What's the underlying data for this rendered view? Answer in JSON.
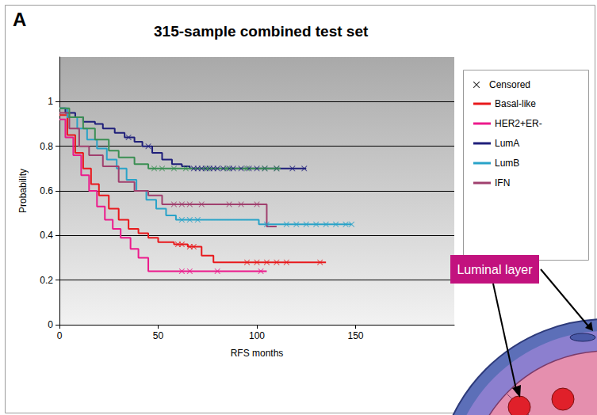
{
  "chart_data": {
    "type": "line",
    "panel_label": "A",
    "title": "315-sample combined test set",
    "x_label": "RFS months",
    "y_label": "Probability",
    "xlim": [
      0,
      200
    ],
    "xticks": [
      0,
      50,
      100,
      150
    ],
    "ylim": [
      0,
      1.2
    ],
    "yticks": [
      0,
      0.2,
      0.4,
      0.6,
      0.8,
      1
    ],
    "grid": true,
    "legend": "upper right",
    "censored_label": "Censored",
    "marker": "x",
    "line_style": "step",
    "series": [
      {
        "name": "Basal-like",
        "color": "#e8191c",
        "x": [
          0,
          4,
          8,
          12,
          16,
          20,
          25,
          30,
          35,
          40,
          45,
          50,
          58,
          65,
          72,
          78,
          135
        ],
        "values": [
          0.94,
          0.85,
          0.77,
          0.7,
          0.63,
          0.58,
          0.52,
          0.47,
          0.43,
          0.41,
          0.39,
          0.37,
          0.36,
          0.35,
          0.31,
          0.28,
          0.28
        ],
        "censored": [
          [
            60,
            0.36
          ],
          [
            62,
            0.36
          ],
          [
            66,
            0.35
          ],
          [
            68,
            0.35
          ],
          [
            95,
            0.28
          ],
          [
            100,
            0.28
          ],
          [
            105,
            0.28
          ],
          [
            110,
            0.28
          ],
          [
            115,
            0.28
          ],
          [
            132,
            0.28
          ]
        ]
      },
      {
        "name": "HER2+ER-",
        "color": "#ec1a8c",
        "x": [
          0,
          3,
          7,
          11,
          15,
          19,
          23,
          27,
          31,
          36,
          40,
          45,
          105
        ],
        "values": [
          0.92,
          0.84,
          0.76,
          0.67,
          0.6,
          0.53,
          0.47,
          0.43,
          0.39,
          0.34,
          0.3,
          0.24,
          0.24
        ],
        "censored": [
          [
            62,
            0.24
          ],
          [
            66,
            0.24
          ],
          [
            80,
            0.24
          ],
          [
            102,
            0.24
          ]
        ]
      },
      {
        "name": "LumA",
        "color": "#1f1f7a",
        "x": [
          0,
          3,
          8,
          12,
          18,
          22,
          28,
          33,
          38,
          42,
          47,
          52,
          57,
          62,
          66,
          125
        ],
        "values": [
          0.97,
          0.95,
          0.93,
          0.91,
          0.9,
          0.88,
          0.86,
          0.84,
          0.82,
          0.8,
          0.77,
          0.74,
          0.72,
          0.71,
          0.7,
          0.7
        ],
        "censored": [
          [
            35,
            0.84
          ],
          [
            45,
            0.8
          ],
          [
            68,
            0.7
          ],
          [
            70,
            0.7
          ],
          [
            72,
            0.7
          ],
          [
            74,
            0.7
          ],
          [
            76,
            0.7
          ],
          [
            78,
            0.7
          ],
          [
            80,
            0.7
          ],
          [
            83,
            0.7
          ],
          [
            86,
            0.7
          ],
          [
            88,
            0.7
          ],
          [
            92,
            0.7
          ],
          [
            96,
            0.7
          ],
          [
            100,
            0.7
          ],
          [
            104,
            0.7
          ],
          [
            110,
            0.7
          ],
          [
            118,
            0.7
          ],
          [
            124,
            0.7
          ]
        ]
      },
      {
        "name": "LumB",
        "color": "#29a3c8",
        "x": [
          0,
          4,
          9,
          14,
          19,
          24,
          29,
          34,
          39,
          44,
          49,
          54,
          59,
          101,
          148
        ],
        "values": [
          0.97,
          0.93,
          0.88,
          0.83,
          0.79,
          0.74,
          0.7,
          0.65,
          0.6,
          0.56,
          0.52,
          0.49,
          0.47,
          0.45,
          0.45
        ],
        "censored": [
          [
            62,
            0.47
          ],
          [
            66,
            0.47
          ],
          [
            70,
            0.47
          ],
          [
            105,
            0.45
          ],
          [
            115,
            0.45
          ],
          [
            120,
            0.45
          ],
          [
            125,
            0.45
          ],
          [
            130,
            0.45
          ],
          [
            135,
            0.45
          ],
          [
            140,
            0.45
          ],
          [
            145,
            0.45
          ],
          [
            148,
            0.45
          ]
        ]
      },
      {
        "name": "IFN",
        "color": "#a0406e",
        "x": [
          0,
          5,
          10,
          15,
          22,
          30,
          38,
          45,
          52,
          105,
          110
        ],
        "values": [
          0.95,
          0.88,
          0.8,
          0.76,
          0.71,
          0.64,
          0.6,
          0.58,
          0.54,
          0.44,
          0.44
        ],
        "censored": [
          [
            58,
            0.54
          ],
          [
            62,
            0.54
          ],
          [
            66,
            0.54
          ],
          [
            72,
            0.54
          ],
          [
            86,
            0.54
          ],
          [
            92,
            0.54
          ],
          [
            100,
            0.54
          ]
        ]
      },
      {
        "color": "#3b8f53",
        "x": [
          0,
          5,
          12,
          18,
          25,
          30,
          38,
          45,
          112
        ],
        "values": [
          0.97,
          0.93,
          0.88,
          0.83,
          0.78,
          0.75,
          0.72,
          0.7,
          0.7
        ],
        "censored": [
          [
            48,
            0.7
          ],
          [
            52,
            0.7
          ],
          [
            58,
            0.7
          ],
          [
            64,
            0.7
          ],
          [
            75,
            0.7
          ],
          [
            85,
            0.7
          ],
          [
            95,
            0.7
          ],
          [
            104,
            0.7
          ],
          [
            110,
            0.7
          ]
        ]
      }
    ]
  },
  "inset": {
    "label": "Luminal layer"
  }
}
